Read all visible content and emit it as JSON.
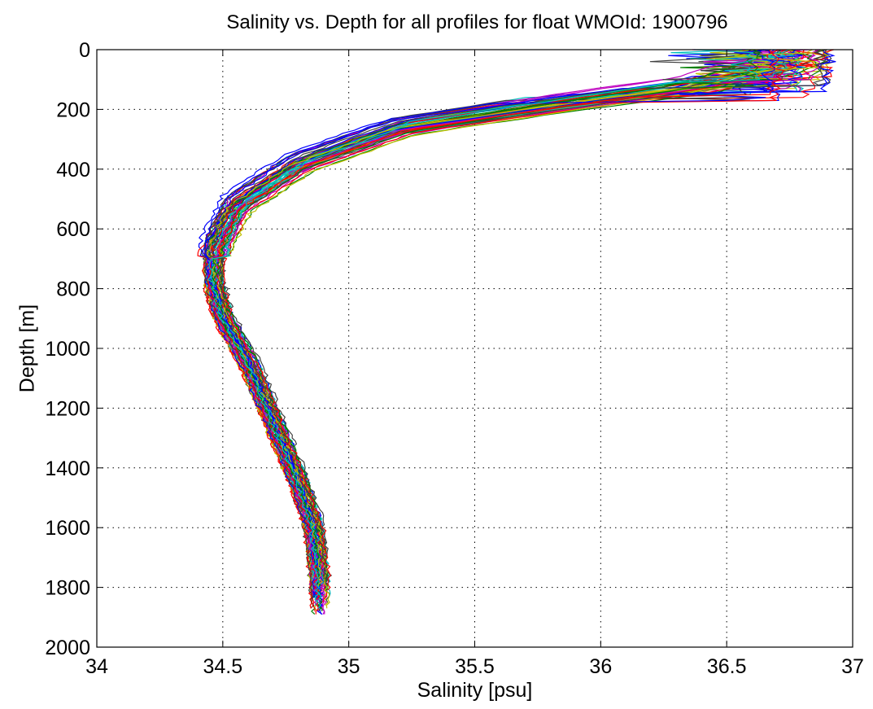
{
  "chart_data": {
    "type": "line",
    "title": "Salinity vs. Depth for all profiles for float WMOId: 1900796",
    "xlabel": "Salinity [psu]",
    "ylabel": "Depth [m]",
    "xlim": [
      34,
      37
    ],
    "ylim": [
      0,
      2000
    ],
    "y_reversed": true,
    "grid": true,
    "x_ticks": [
      "34",
      "34.5",
      "35",
      "35.5",
      "36",
      "36.5",
      "37"
    ],
    "y_ticks": [
      "0",
      "200",
      "400",
      "600",
      "800",
      "1000",
      "1200",
      "1400",
      "1600",
      "1800",
      "2000"
    ],
    "series_colors": [
      "#0000ff",
      "#008000",
      "#ff0000",
      "#00bfbf",
      "#bf00bf",
      "#bfbf00",
      "#404040"
    ],
    "profile_count": 60,
    "representative_profile": {
      "salinity": [
        36.7,
        36.6,
        36.3,
        35.8,
        35.2,
        34.8,
        34.55,
        34.47,
        34.46,
        34.5,
        34.6,
        34.7,
        34.8,
        34.86,
        34.88,
        34.89
      ],
      "depth": [
        0,
        50,
        120,
        180,
        260,
        380,
        520,
        650,
        780,
        900,
        1050,
        1250,
        1450,
        1600,
        1750,
        1880
      ]
    }
  }
}
